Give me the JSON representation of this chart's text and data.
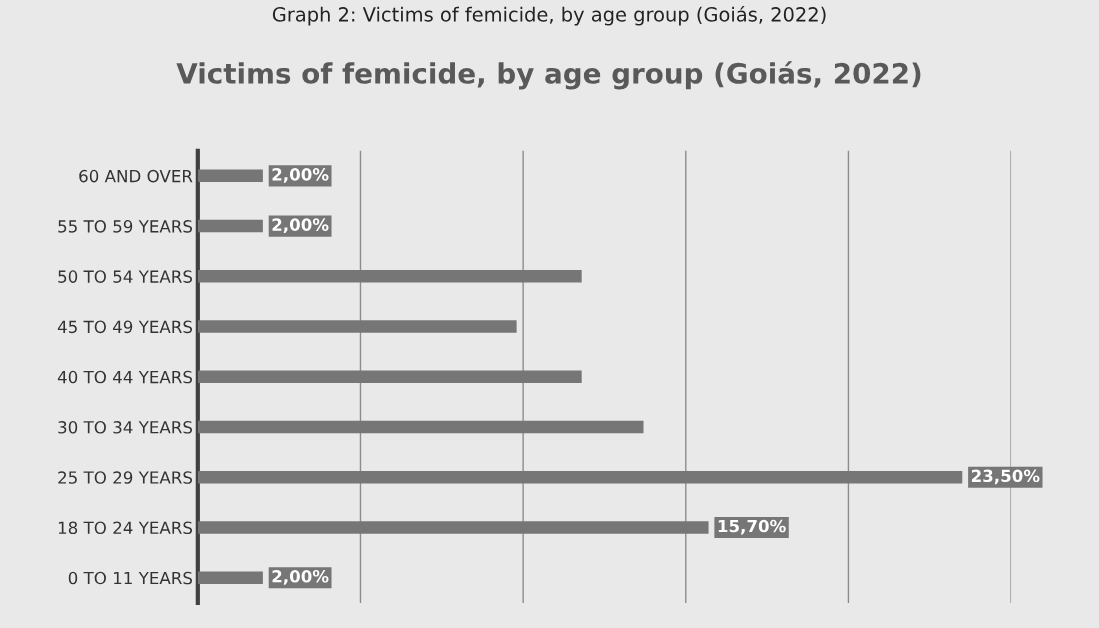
{
  "chart_data": {
    "type": "bar",
    "orientation": "horizontal",
    "title": "Graph 2: Victims of femicide, by age group (Goiás, 2022)",
    "subtitle": "Victims of femicide, by age group (Goiás, 2022)",
    "categories": [
      "60 AND OVER",
      "55 TO 59 YEARS",
      "50 TO 54 YEARS",
      "45 TO 49 YEARS",
      "40 TO 44 YEARS",
      "30 TO 34 YEARS",
      "25 TO 29 YEARS",
      "18 TO 24 YEARS",
      "0 TO 11 YEARS"
    ],
    "values": [
      2.0,
      2.0,
      11.8,
      9.8,
      11.8,
      13.7,
      23.5,
      15.7,
      2.0
    ],
    "value_labels": [
      "2,00%",
      "2,00%",
      null,
      null,
      null,
      null,
      "23,50%",
      "15,70%",
      "2,00%"
    ],
    "color": "#767676",
    "xlim": [
      0,
      25
    ],
    "xticks": [
      {
        "value": 0,
        "label": null
      },
      {
        "value": 5,
        "label": null
      },
      {
        "value": 10,
        "label": null
      },
      {
        "value": 15,
        "label": null
      },
      {
        "value": 20,
        "label": null
      },
      {
        "value": 25,
        "label": null
      }
    ],
    "tick_labels": "y",
    "grid": "x",
    "legend": false
  }
}
